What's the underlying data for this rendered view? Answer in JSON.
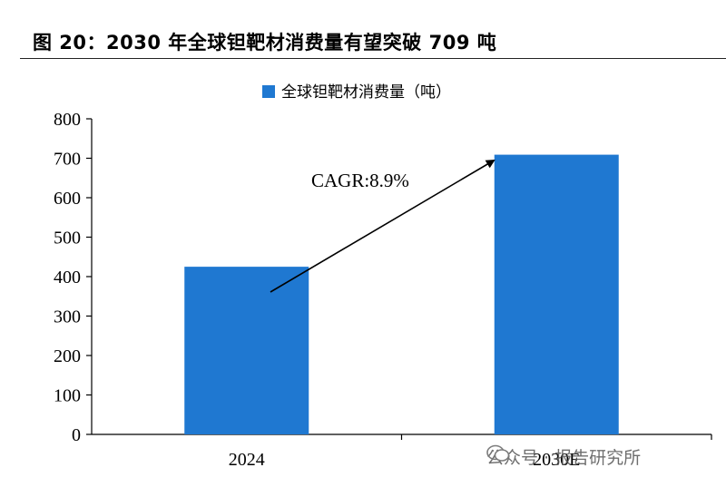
{
  "figure": {
    "title": "图 20：2030 年全球钽靶材消费量有望突破 709 吨"
  },
  "chart_data": {
    "type": "bar",
    "categories": [
      "2024",
      "2030E"
    ],
    "series": [
      {
        "name": "全球钽靶材消费量（吨）",
        "values": [
          425,
          709
        ],
        "color": "#1F78D1"
      }
    ],
    "ylim": [
      0,
      800
    ],
    "yticks": [
      "0",
      "100",
      "200",
      "300",
      "400",
      "500",
      "600",
      "700",
      "800"
    ],
    "ytick_values": [
      0,
      100,
      200,
      300,
      400,
      500,
      600,
      700,
      800
    ],
    "xlabel": "",
    "ylabel": "",
    "legend_position": "top-center",
    "grid": false,
    "annotation": {
      "text": "CAGR:8.9%",
      "from": "2024",
      "to": "2030E"
    }
  },
  "watermark": {
    "text": "公众号 · 报告研究所"
  }
}
